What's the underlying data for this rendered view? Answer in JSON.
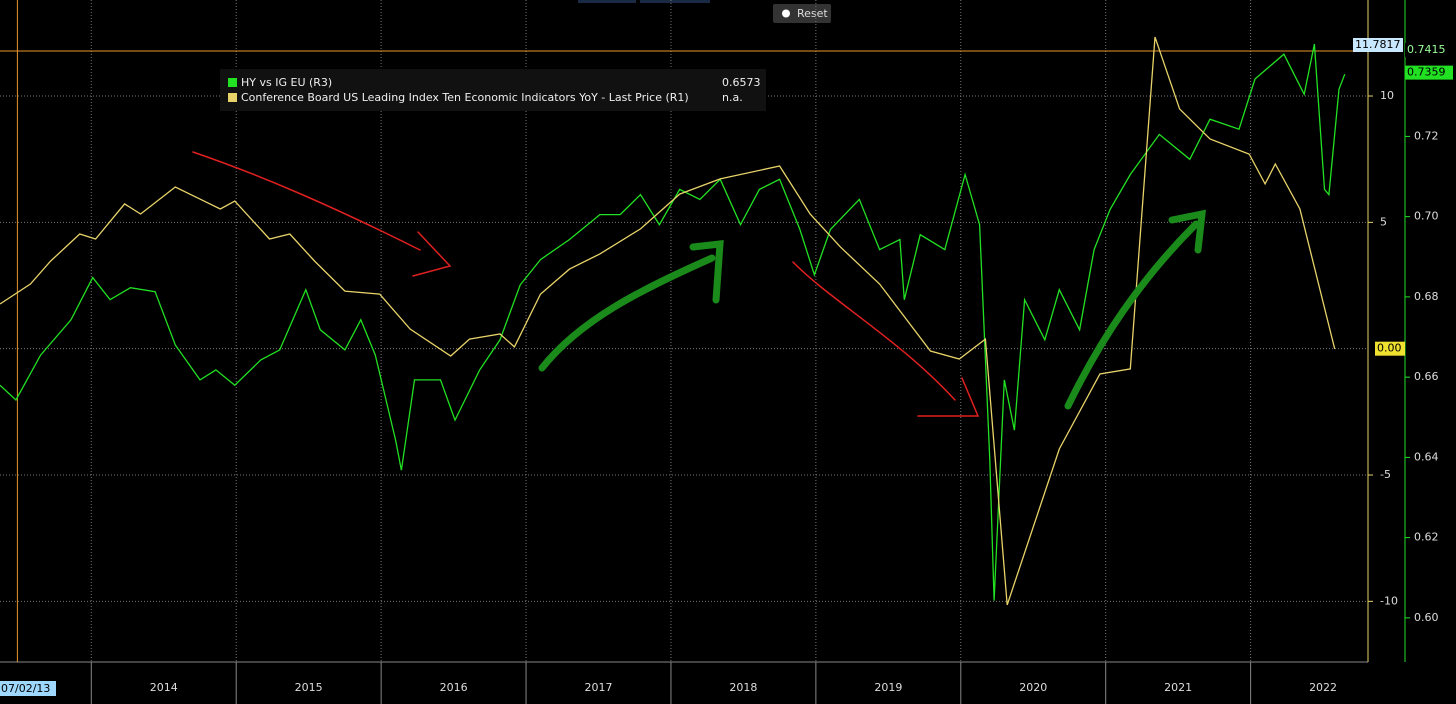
{
  "chart_data": {
    "type": "line",
    "button": "Reset",
    "cursor": {
      "x": 2013.49,
      "label": "07/02/13"
    },
    "hline": {
      "value": 11.7817,
      "axis": "y"
    },
    "y_marker": {
      "value": 0,
      "label": "0.00"
    },
    "y2_markers": [
      0.7415,
      0.7359
    ],
    "xlim": [
      2013.37,
      2022.81
    ],
    "xticks": [
      {
        "value": 2014.5,
        "label": "2014"
      },
      {
        "value": 2015.5,
        "label": "2015"
      },
      {
        "value": 2016.5,
        "label": "2016"
      },
      {
        "value": 2017.5,
        "label": "2017"
      },
      {
        "value": 2018.5,
        "label": "2018"
      },
      {
        "value": 2019.5,
        "label": "2019"
      },
      {
        "value": 2020.5,
        "label": "2020"
      },
      {
        "value": 2021.5,
        "label": "2021"
      },
      {
        "value": 2022.5,
        "label": "2022"
      }
    ],
    "ylim": [
      -12.4,
      13.8
    ],
    "yticks": [
      -10,
      -5,
      5,
      10
    ],
    "y2lim": [
      0.589,
      0.754
    ],
    "y2ticks": [
      {
        "value": 0.6,
        "label": "0.60"
      },
      0.62,
      0.64,
      0.66,
      0.68,
      {
        "value": 0.7,
        "label": "0.70"
      },
      0.72
    ],
    "grid": true,
    "series": [
      {
        "name": "HY vs IG EU (R3)",
        "legend_value": 0.6573,
        "color": "#22e022",
        "axis": "y2",
        "x": [
          2013.37,
          2013.48,
          2013.65,
          2013.86,
          2014.01,
          2014.13,
          2014.27,
          2014.44,
          2014.58,
          2014.75,
          2014.86,
          2014.99,
          2015.17,
          2015.3,
          2015.48,
          2015.58,
          2015.75,
          2015.86,
          2015.96,
          2016.1,
          2016.14,
          2016.23,
          2016.41,
          2016.51,
          2016.68,
          2016.82,
          2016.96,
          2017.1,
          2017.3,
          2017.51,
          2017.65,
          2017.79,
          2017.92,
          2018.06,
          2018.2,
          2018.34,
          2018.48,
          2018.61,
          2018.75,
          2018.89,
          2018.99,
          2019.1,
          2019.3,
          2019.44,
          2019.58,
          2019.61,
          2019.72,
          2019.89,
          2020.03,
          2020.13,
          2020.2,
          2020.23,
          2020.3,
          2020.37,
          2020.44,
          2020.58,
          2020.68,
          2020.82,
          2020.92,
          2021.03,
          2021.17,
          2021.37,
          2021.58,
          2021.72,
          2021.92,
          2022.03,
          2022.23,
          2022.37,
          2022.44,
          2022.51,
          2022.54,
          2022.61,
          2022.65
        ],
        "values": [
          0.658,
          0.6543,
          0.6655,
          0.6743,
          0.6848,
          0.6793,
          0.6823,
          0.6813,
          0.668,
          0.6593,
          0.6618,
          0.658,
          0.6643,
          0.6668,
          0.6818,
          0.6718,
          0.6668,
          0.6743,
          0.6655,
          0.6443,
          0.6368,
          0.6593,
          0.6593,
          0.6493,
          0.6618,
          0.6693,
          0.683,
          0.6893,
          0.6943,
          0.7005,
          0.7005,
          0.7055,
          0.698,
          0.7068,
          0.7043,
          0.7093,
          0.698,
          0.7068,
          0.7093,
          0.6968,
          0.6855,
          0.6968,
          0.7043,
          0.6918,
          0.6943,
          0.6793,
          0.6955,
          0.6918,
          0.7105,
          0.698,
          0.6393,
          0.6043,
          0.6593,
          0.6468,
          0.6793,
          0.6693,
          0.6818,
          0.6718,
          0.6918,
          0.7018,
          0.7105,
          0.7205,
          0.7143,
          0.7243,
          0.7218,
          0.7343,
          0.7405,
          0.7305,
          0.743,
          0.7068,
          0.7055,
          0.7318,
          0.7355
        ]
      },
      {
        "name": "Conference Board US Leading Index Ten Economic Indicators YoY - Last Price (R1)",
        "legend_value": "n.a.",
        "color": "#e8d36a",
        "axis": "y",
        "x": [
          2013.37,
          2013.58,
          2013.72,
          2013.92,
          2014.03,
          2014.23,
          2014.34,
          2014.58,
          2014.75,
          2014.89,
          2014.99,
          2015.23,
          2015.37,
          2015.54,
          2015.75,
          2015.99,
          2016.2,
          2016.48,
          2016.61,
          2016.82,
          2016.92,
          2017.1,
          2017.3,
          2017.51,
          2017.79,
          2018.06,
          2018.34,
          2018.75,
          2018.96,
          2019.17,
          2019.44,
          2019.79,
          2019.99,
          2020.17,
          2020.32,
          2020.68,
          2020.96,
          2021.17,
          2021.34,
          2021.51,
          2021.72,
          2021.99,
          2022.1,
          2022.17,
          2022.34,
          2022.58
        ],
        "values": [
          1.77,
          2.56,
          3.47,
          4.54,
          4.34,
          5.73,
          5.33,
          6.4,
          5.92,
          5.53,
          5.84,
          4.34,
          4.54,
          3.47,
          2.28,
          2.16,
          0.78,
          -0.29,
          0.38,
          0.58,
          0.07,
          2.16,
          3.15,
          3.75,
          4.74,
          6.12,
          6.72,
          7.23,
          5.33,
          4.02,
          2.56,
          -0.09,
          -0.41,
          0.38,
          -10.14,
          -3.97,
          -1.0,
          -0.8,
          12.33,
          9.49,
          8.3,
          7.7,
          6.52,
          7.31,
          5.53,
          -0.01
        ]
      }
    ]
  }
}
